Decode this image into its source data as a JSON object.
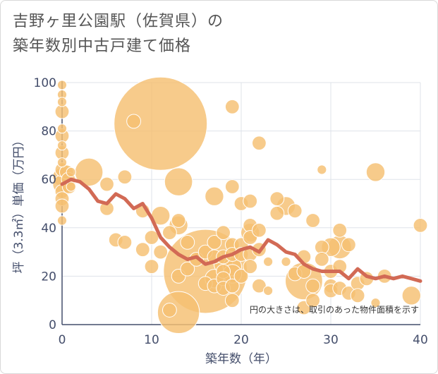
{
  "title_lines": [
    "吉野ヶ里公園駅（佐賀県）の",
    "築年数別中古戸建て価格"
  ],
  "chart_data": {
    "type": "scatter",
    "xlabel": "築年数（年）",
    "ylabel": "坪（3.3㎡）単価（万円）",
    "xlim": [
      0,
      40
    ],
    "ylim": [
      0,
      100
    ],
    "xticks": [
      0,
      10,
      20,
      30,
      40
    ],
    "yticks": [
      0,
      20,
      40,
      60,
      80,
      100
    ],
    "grid": true,
    "annotation": "円の大きさは、取引のあった物件面積を示す",
    "colors": {
      "bubble": "#f5c072",
      "bubble_edge": "#ffffff",
      "trend": "#d26a55",
      "grid": "#dfe3ea",
      "axis": "#444e6b"
    },
    "bubbles": [
      {
        "x": 0,
        "y": 99,
        "s": 2
      },
      {
        "x": 0,
        "y": 95,
        "s": 2
      },
      {
        "x": 0,
        "y": 92,
        "s": 2
      },
      {
        "x": 0,
        "y": 88,
        "s": 3
      },
      {
        "x": 0,
        "y": 81,
        "s": 2
      },
      {
        "x": 0,
        "y": 78,
        "s": 3
      },
      {
        "x": 0,
        "y": 74,
        "s": 2
      },
      {
        "x": 0,
        "y": 71,
        "s": 3
      },
      {
        "x": 0,
        "y": 67,
        "s": 2
      },
      {
        "x": 0,
        "y": 64,
        "s": 3
      },
      {
        "x": 0,
        "y": 61,
        "s": 4
      },
      {
        "x": 0,
        "y": 58,
        "s": 4
      },
      {
        "x": 0,
        "y": 55,
        "s": 3
      },
      {
        "x": 0,
        "y": 52,
        "s": 3
      },
      {
        "x": 0,
        "y": 49,
        "s": 3
      },
      {
        "x": 0,
        "y": 43,
        "s": 2
      },
      {
        "x": 0.5,
        "y": 63,
        "s": 3
      },
      {
        "x": 0.7,
        "y": 60,
        "s": 3
      },
      {
        "x": 0.8,
        "y": 57,
        "s": 3
      },
      {
        "x": 1,
        "y": 63,
        "s": 2
      },
      {
        "x": 1,
        "y": 57,
        "s": 2
      },
      {
        "x": 3,
        "y": 63,
        "s": 6
      },
      {
        "x": 5,
        "y": 58,
        "s": 3
      },
      {
        "x": 5,
        "y": 48,
        "s": 3
      },
      {
        "x": 6,
        "y": 35,
        "s": 3
      },
      {
        "x": 7,
        "y": 61,
        "s": 3
      },
      {
        "x": 7,
        "y": 34,
        "s": 3
      },
      {
        "x": 8,
        "y": 84,
        "s": 3
      },
      {
        "x": 9,
        "y": 47,
        "s": 3
      },
      {
        "x": 9,
        "y": 31,
        "s": 3
      },
      {
        "x": 10,
        "y": 36,
        "s": 3
      },
      {
        "x": 10,
        "y": 24,
        "s": 3
      },
      {
        "x": 11,
        "y": 83,
        "s": 20
      },
      {
        "x": 11,
        "y": 45,
        "s": 4
      },
      {
        "x": 11,
        "y": 30,
        "s": 3
      },
      {
        "x": 12,
        "y": 38,
        "s": 3
      },
      {
        "x": 12,
        "y": 6,
        "s": 3
      },
      {
        "x": 13,
        "y": 59,
        "s": 6
      },
      {
        "x": 13,
        "y": 43,
        "s": 3
      },
      {
        "x": 13,
        "y": 41,
        "s": 4
      },
      {
        "x": 13,
        "y": 20,
        "s": 3
      },
      {
        "x": 13,
        "y": 5,
        "s": 9
      },
      {
        "x": 14,
        "y": 34,
        "s": 3
      },
      {
        "x": 14,
        "y": 23,
        "s": 3
      },
      {
        "x": 15,
        "y": 27,
        "s": 3
      },
      {
        "x": 16,
        "y": 30,
        "s": 3
      },
      {
        "x": 16,
        "y": 22,
        "s": 18
      },
      {
        "x": 16,
        "y": 17,
        "s": 3
      },
      {
        "x": 17,
        "y": 53,
        "s": 4
      },
      {
        "x": 17,
        "y": 34,
        "s": 3
      },
      {
        "x": 17,
        "y": 28,
        "s": 3
      },
      {
        "x": 17,
        "y": 19,
        "s": 4
      },
      {
        "x": 17,
        "y": 16,
        "s": 3
      },
      {
        "x": 18,
        "y": 38,
        "s": 3
      },
      {
        "x": 18,
        "y": 28,
        "s": 3
      },
      {
        "x": 18,
        "y": 25,
        "s": 4
      },
      {
        "x": 18,
        "y": 22,
        "s": 3
      },
      {
        "x": 18,
        "y": 19,
        "s": 3
      },
      {
        "x": 18,
        "y": 15,
        "s": 3
      },
      {
        "x": 19,
        "y": 90,
        "s": 3
      },
      {
        "x": 19,
        "y": 57,
        "s": 3
      },
      {
        "x": 19,
        "y": 33,
        "s": 3
      },
      {
        "x": 19,
        "y": 29,
        "s": 3
      },
      {
        "x": 19,
        "y": 24,
        "s": 4
      },
      {
        "x": 19,
        "y": 21,
        "s": 4
      },
      {
        "x": 19,
        "y": 16,
        "s": 3
      },
      {
        "x": 19,
        "y": 10,
        "s": 3
      },
      {
        "x": 20,
        "y": 50,
        "s": 3
      },
      {
        "x": 20,
        "y": 33,
        "s": 3
      },
      {
        "x": 20,
        "y": 29,
        "s": 3
      },
      {
        "x": 20,
        "y": 20,
        "s": 3
      },
      {
        "x": 21,
        "y": 51,
        "s": 3
      },
      {
        "x": 21,
        "y": 41,
        "s": 3
      },
      {
        "x": 21,
        "y": 38,
        "s": 4
      },
      {
        "x": 21,
        "y": 36,
        "s": 3
      },
      {
        "x": 21,
        "y": 29,
        "s": 3
      },
      {
        "x": 21,
        "y": 24,
        "s": 3
      },
      {
        "x": 22,
        "y": 75,
        "s": 3
      },
      {
        "x": 22,
        "y": 39,
        "s": 3
      },
      {
        "x": 22,
        "y": 31,
        "s": 3
      },
      {
        "x": 22,
        "y": 16,
        "s": 3
      },
      {
        "x": 23,
        "y": 14,
        "s": 2
      },
      {
        "x": 23,
        "y": 26,
        "s": 2
      },
      {
        "x": 24,
        "y": 52,
        "s": 3
      },
      {
        "x": 24,
        "y": 46,
        "s": 3
      },
      {
        "x": 25,
        "y": 49,
        "s": 4
      },
      {
        "x": 25,
        "y": 26,
        "s": 2
      },
      {
        "x": 26,
        "y": 47,
        "s": 3
      },
      {
        "x": 26,
        "y": 21,
        "s": 3
      },
      {
        "x": 27,
        "y": 28,
        "s": 3
      },
      {
        "x": 27,
        "y": 22,
        "s": 3
      },
      {
        "x": 27,
        "y": 18,
        "s": 8
      },
      {
        "x": 27,
        "y": 7,
        "s": 3
      },
      {
        "x": 28,
        "y": 43,
        "s": 3
      },
      {
        "x": 28,
        "y": 16,
        "s": 3
      },
      {
        "x": 28,
        "y": 10,
        "s": 3
      },
      {
        "x": 29,
        "y": 64,
        "s": 2
      },
      {
        "x": 29,
        "y": 32,
        "s": 3
      },
      {
        "x": 29,
        "y": 27,
        "s": 3
      },
      {
        "x": 30,
        "y": 32,
        "s": 4
      },
      {
        "x": 30,
        "y": 22,
        "s": 3
      },
      {
        "x": 30,
        "y": 16,
        "s": 3
      },
      {
        "x": 30,
        "y": 14,
        "s": 3
      },
      {
        "x": 31,
        "y": 39,
        "s": 3
      },
      {
        "x": 31,
        "y": 32,
        "s": 5
      },
      {
        "x": 31,
        "y": 24,
        "s": 3
      },
      {
        "x": 31,
        "y": 15,
        "s": 3
      },
      {
        "x": 32,
        "y": 33,
        "s": 3
      },
      {
        "x": 32,
        "y": 13,
        "s": 3
      },
      {
        "x": 33,
        "y": 17,
        "s": 3
      },
      {
        "x": 33,
        "y": 12,
        "s": 3
      },
      {
        "x": 34,
        "y": 19,
        "s": 3
      },
      {
        "x": 35,
        "y": 63,
        "s": 4
      },
      {
        "x": 35,
        "y": 9,
        "s": 2
      },
      {
        "x": 36,
        "y": 20,
        "s": 3
      },
      {
        "x": 39,
        "y": 12,
        "s": 4
      },
      {
        "x": 40,
        "y": 41,
        "s": 3
      }
    ],
    "trend": {
      "x": [
        0,
        1,
        2,
        3,
        4,
        5,
        6,
        7,
        8,
        9,
        10,
        11,
        12,
        13,
        14,
        15,
        16,
        17,
        18,
        19,
        20,
        21,
        22,
        23,
        24,
        25,
        26,
        27,
        28,
        29,
        30,
        31,
        32,
        33,
        34,
        35,
        36,
        37,
        38,
        39,
        40
      ],
      "y": [
        58,
        60,
        59,
        56,
        51,
        50,
        54,
        52,
        48,
        50,
        44,
        36,
        32,
        29,
        27,
        28,
        25,
        26,
        28,
        29,
        31,
        32,
        30,
        35,
        33,
        30,
        29,
        25,
        23,
        22,
        22,
        22,
        19,
        23,
        20,
        19,
        20,
        19,
        20,
        19,
        18
      ]
    }
  }
}
